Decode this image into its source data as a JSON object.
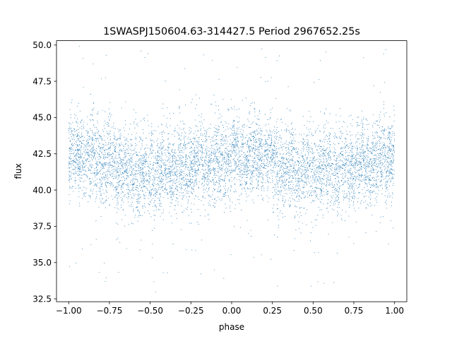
{
  "chart_data": {
    "type": "scatter",
    "title": "1SWASPJ150604.63-314427.5 Period 2967652.25s",
    "xlabel": "phase",
    "ylabel": "flux",
    "xlim": [
      -1.075,
      1.075
    ],
    "ylim": [
      32.3,
      50.3
    ],
    "x_ticks": [
      {
        "value": -1.0,
        "label": "−1.00"
      },
      {
        "value": -0.75,
        "label": "−0.75"
      },
      {
        "value": -0.5,
        "label": "−0.50"
      },
      {
        "value": -0.25,
        "label": "−0.25"
      },
      {
        "value": 0.0,
        "label": "0.00"
      },
      {
        "value": 0.25,
        "label": "0.25"
      },
      {
        "value": 0.5,
        "label": "0.50"
      },
      {
        "value": 0.75,
        "label": "0.75"
      },
      {
        "value": 1.0,
        "label": "1.00"
      }
    ],
    "y_ticks": [
      {
        "value": 32.5,
        "label": "32.5"
      },
      {
        "value": 35.0,
        "label": "35.0"
      },
      {
        "value": 37.5,
        "label": "37.5"
      },
      {
        "value": 40.0,
        "label": "40.0"
      },
      {
        "value": 42.5,
        "label": "42.5"
      },
      {
        "value": 45.0,
        "label": "45.0"
      },
      {
        "value": 47.5,
        "label": "47.5"
      },
      {
        "value": 50.0,
        "label": "50.0"
      }
    ],
    "grid": false,
    "marker_color": "#1f77b4",
    "series": [
      {
        "x": [
          -1.0,
          -0.9,
          -0.8,
          -0.75,
          -0.7,
          -0.6,
          -0.5,
          -0.4,
          -0.3,
          -0.2,
          -0.1,
          0.0,
          0.1,
          0.2,
          0.25,
          0.3,
          0.4,
          0.5,
          0.6,
          0.7,
          0.8,
          0.9,
          1.0
        ],
        "y": [
          42.4,
          42.5,
          42.2,
          42.0,
          41.5,
          41.2,
          41.4,
          41.5,
          41.5,
          41.9,
          42.0,
          42.3,
          42.4,
          42.2,
          42.0,
          41.5,
          41.2,
          41.4,
          41.5,
          41.5,
          41.9,
          42.0,
          42.4
        ],
        "spread": [
          1.8,
          1.9,
          2.0,
          2.0,
          1.9,
          1.8,
          1.9,
          1.9,
          1.8,
          1.8,
          1.9,
          1.9,
          1.8,
          1.9,
          2.0,
          1.9,
          1.8,
          1.9,
          1.9,
          1.8,
          1.8,
          1.9,
          1.8
        ]
      }
    ]
  }
}
